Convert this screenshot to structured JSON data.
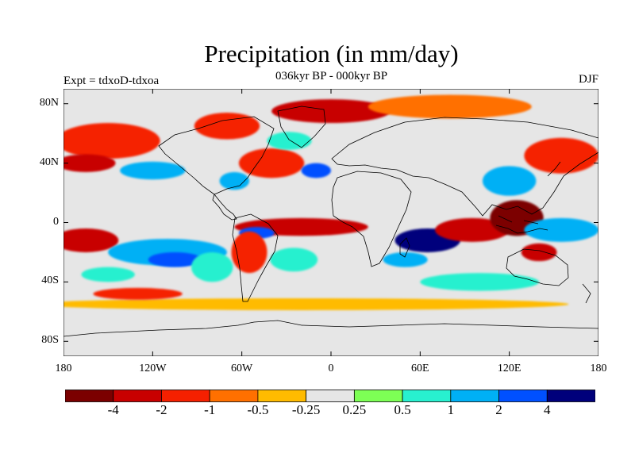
{
  "title": "Precipitation (in mm/day)",
  "subtitle": "036kyr BP - 000kyr BP",
  "experiment_label": "Expt = tdxoD-tdxoa",
  "season_label": "DJF",
  "map": {
    "type": "filled-contour-map",
    "projection": "cylindrical-equidistant",
    "lon_range": [
      -180,
      180
    ],
    "lat_range": [
      -90,
      90
    ],
    "x_ticks": [
      {
        "value": -180,
        "label": "180"
      },
      {
        "value": -120,
        "label": "120W"
      },
      {
        "value": -60,
        "label": "60W"
      },
      {
        "value": 0,
        "label": "0"
      },
      {
        "value": 60,
        "label": "60E"
      },
      {
        "value": 120,
        "label": "120E"
      },
      {
        "value": 180,
        "label": "180"
      }
    ],
    "y_ticks": [
      {
        "value": 80,
        "label": "80N"
      },
      {
        "value": 40,
        "label": "40N"
      },
      {
        "value": 0,
        "label": "0"
      },
      {
        "value": -40,
        "label": "40S"
      },
      {
        "value": -80,
        "label": "80S"
      }
    ],
    "background_color": "#e6e6e6"
  },
  "colorbar": {
    "colors": [
      "#7b0000",
      "#c80000",
      "#f52000",
      "#ff7000",
      "#ffbb00",
      "#e6e6e6",
      "#7dff55",
      "#28f0cf",
      "#00b0f5",
      "#0050ff",
      "#00007b"
    ],
    "labels": [
      "-4",
      "-2",
      "-1",
      "-0.5",
      "-0.25",
      "0.25",
      "0.5",
      "1",
      "2",
      "4"
    ]
  },
  "anomaly_regions": [
    {
      "lon": -165,
      "lat": -12,
      "rx": 22,
      "ry": 8,
      "level": 1
    },
    {
      "lon": -110,
      "lat": -20,
      "rx": 40,
      "ry": 9,
      "level": 8
    },
    {
      "lon": -105,
      "lat": -25,
      "rx": 18,
      "ry": 5,
      "level": 9
    },
    {
      "lon": -150,
      "lat": -35,
      "rx": 18,
      "ry": 5,
      "level": 7
    },
    {
      "lon": -80,
      "lat": -30,
      "rx": 14,
      "ry": 10,
      "level": 7
    },
    {
      "lon": -150,
      "lat": 55,
      "rx": 35,
      "ry": 12,
      "level": 2
    },
    {
      "lon": -165,
      "lat": 40,
      "rx": 20,
      "ry": 6,
      "level": 1
    },
    {
      "lon": -120,
      "lat": 35,
      "rx": 22,
      "ry": 6,
      "level": 8
    },
    {
      "lon": -70,
      "lat": 65,
      "rx": 22,
      "ry": 9,
      "level": 2
    },
    {
      "lon": -40,
      "lat": 40,
      "rx": 22,
      "ry": 10,
      "level": 2
    },
    {
      "lon": -65,
      "lat": 28,
      "rx": 10,
      "ry": 6,
      "level": 8
    },
    {
      "lon": -28,
      "lat": 55,
      "rx": 15,
      "ry": 6,
      "level": 7
    },
    {
      "lon": -10,
      "lat": 35,
      "rx": 10,
      "ry": 5,
      "level": 9
    },
    {
      "lon": 0,
      "lat": 75,
      "rx": 40,
      "ry": 8,
      "level": 1
    },
    {
      "lon": 80,
      "lat": 78,
      "rx": 55,
      "ry": 8,
      "level": 3
    },
    {
      "lon": 155,
      "lat": 45,
      "rx": 25,
      "ry": 12,
      "level": 2
    },
    {
      "lon": 120,
      "lat": 28,
      "rx": 18,
      "ry": 10,
      "level": 8
    },
    {
      "lon": -20,
      "lat": -3,
      "rx": 45,
      "ry": 6,
      "level": 1
    },
    {
      "lon": -50,
      "lat": -7,
      "rx": 12,
      "ry": 4,
      "level": 9
    },
    {
      "lon": -55,
      "lat": -20,
      "rx": 12,
      "ry": 14,
      "level": 2
    },
    {
      "lon": -25,
      "lat": -25,
      "rx": 16,
      "ry": 8,
      "level": 7
    },
    {
      "lon": 65,
      "lat": -12,
      "rx": 22,
      "ry": 8,
      "level": 10
    },
    {
      "lon": 50,
      "lat": -25,
      "rx": 15,
      "ry": 5,
      "level": 8
    },
    {
      "lon": 95,
      "lat": -5,
      "rx": 25,
      "ry": 8,
      "level": 1
    },
    {
      "lon": 125,
      "lat": 3,
      "rx": 18,
      "ry": 12,
      "level": 0
    },
    {
      "lon": 155,
      "lat": -5,
      "rx": 25,
      "ry": 8,
      "level": 8
    },
    {
      "lon": 140,
      "lat": -20,
      "rx": 12,
      "ry": 6,
      "level": 1
    },
    {
      "lon": -20,
      "lat": -55,
      "rx": 180,
      "ry": 4,
      "level": 4
    },
    {
      "lon": 100,
      "lat": -40,
      "rx": 40,
      "ry": 6,
      "level": 7
    },
    {
      "lon": -130,
      "lat": -48,
      "rx": 30,
      "ry": 4,
      "level": 2
    }
  ]
}
